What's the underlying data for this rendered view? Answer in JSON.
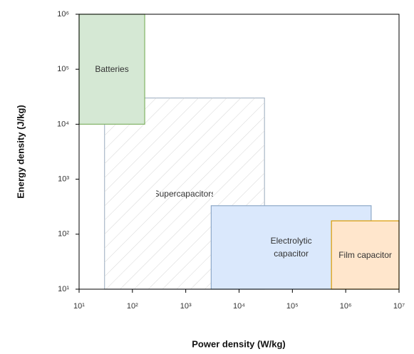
{
  "chart_data": {
    "type": "region",
    "x_label": "Power density (W/kg)",
    "y_label": "Energy density (J/kg)",
    "xscale": "log",
    "yscale": "log",
    "xlim": [
      10,
      10000000
    ],
    "ylim": [
      10,
      1000000
    ],
    "xticks": [
      {
        "value": 10,
        "label": "10¹"
      },
      {
        "value": 100,
        "label": "10²"
      },
      {
        "value": 1000,
        "label": "10³"
      },
      {
        "value": 10000,
        "label": "10⁴"
      },
      {
        "value": 100000,
        "label": "10⁵"
      },
      {
        "value": 1000000,
        "label": "10⁶"
      },
      {
        "value": 10000000,
        "label": "10⁷"
      }
    ],
    "yticks": [
      {
        "value": 10,
        "label": "10¹"
      },
      {
        "value": 100,
        "label": "10²"
      },
      {
        "value": 1000,
        "label": "10³"
      },
      {
        "value": 10000,
        "label": "10⁴"
      },
      {
        "value": 100000,
        "label": "10⁵"
      },
      {
        "value": 1000000,
        "label": "10⁶"
      }
    ],
    "regions": [
      {
        "name": "Supercapacitors",
        "color": "#ffffff",
        "edge_color": "#a9b8c8",
        "hatch": true,
        "x": [
          30,
          30000
        ],
        "y": [
          10,
          30000
        ]
      },
      {
        "name": "Batteries",
        "color": "#d5e8d4",
        "edge_color": "#82b366",
        "hatch": false,
        "x": [
          10,
          170
        ],
        "y": [
          10000,
          1000000
        ]
      },
      {
        "name": "Electrolytic capacitor",
        "color": "#dae8fc",
        "edge_color": "#8ea9c8",
        "hatch": false,
        "x": [
          3000,
          3000000
        ],
        "y": [
          10,
          330
        ]
      },
      {
        "name": "Film capacitor",
        "color": "#ffe6cc",
        "edge_color": "#d79b00",
        "hatch": false,
        "x": [
          540000,
          10000000
        ],
        "y": [
          10,
          175
        ]
      }
    ]
  }
}
